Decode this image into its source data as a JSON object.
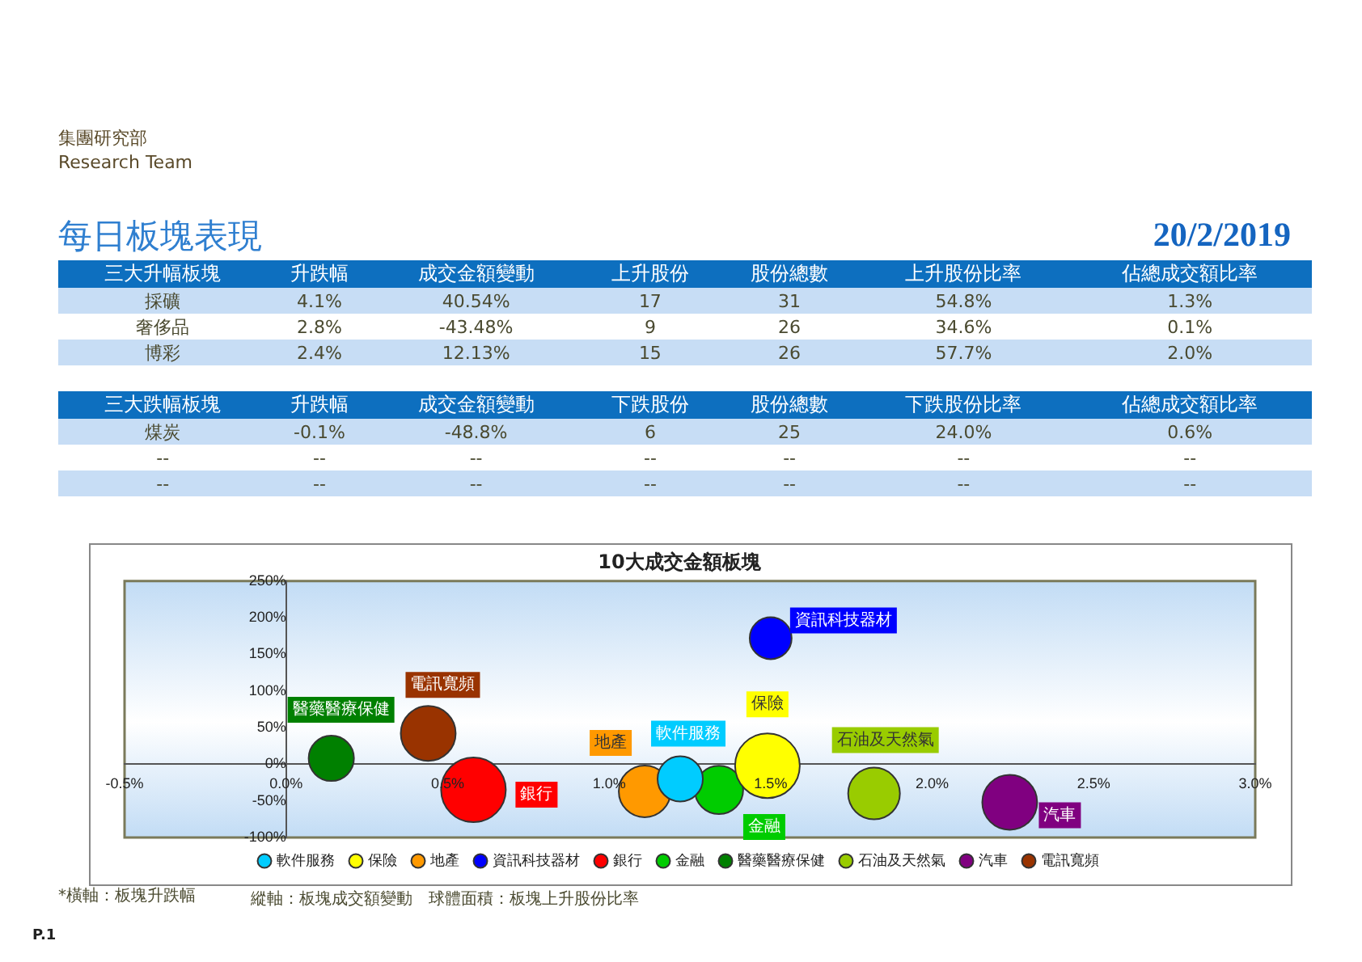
{
  "chart_data": [
    {
      "type": "other",
      "annotations": [
        "集團研究部",
        "Research Team"
      ]
    },
    {
      "type": "other",
      "title": "每日板塊表現",
      "subtitle": "20/2/2019",
      "annotations": [
        "三大升幅板塊",
        "升跌幅",
        "成交金額變動",
        "上升股份",
        "股份總數",
        "上升股份比率",
        "佔總成交額比率",
        "採礦",
        "4.1%",
        "40.54%",
        "17",
        "31",
        "54.8%",
        "1.3%",
        "奢侈品",
        "2.8%",
        "-43.48%",
        "9",
        "26",
        "34.6%",
        "0.1%",
        "博彩",
        "2.4%",
        "12.13%",
        "15",
        "26",
        "57.7%",
        "2.0%",
        "三大跌幅板塊",
        "升跌幅",
        "成交金額變動",
        "下跌股份",
        "股份總數",
        "下跌股份比率",
        "佔總成交額比率",
        "煤炭",
        "-0.1%",
        "-48.8%",
        "6",
        "25",
        "24.0%",
        "0.6%",
        "--",
        "--",
        "--",
        "--",
        "--",
        "--",
        "--",
        "--",
        "--",
        "--",
        "--",
        "--",
        "--",
        "--"
      ]
    },
    {
      "type": "bubble",
      "title": "10大成交金額板塊",
      "series": [
        {
          "name": "軟件服務",
          "color": "#00ccff",
          "x": [
            1.22
          ],
          "values": [
            -20
          ],
          "sizes": [
            0.49
          ]
        },
        {
          "name": "保險",
          "color": "#ffff00",
          "x": [
            1.49
          ],
          "values": [
            -2
          ],
          "sizes": [
            1
          ]
        },
        {
          "name": "地產",
          "color": "#ff9900",
          "x": [
            1.11
          ],
          "values": [
            -37
          ],
          "sizes": [
            0.64
          ]
        },
        {
          "name": "資訊科技器材",
          "color": "#0000ff",
          "x": [
            1.5
          ],
          "values": [
            172
          ],
          "sizes": [
            0.42
          ]
        },
        {
          "name": "銀行",
          "color": "#ff0000",
          "x": [
            0.58
          ],
          "values": [
            -35
          ],
          "sizes": [
            1
          ]
        },
        {
          "name": "金融",
          "color": "#00cc00",
          "x": [
            1.34
          ],
          "values": [
            -35
          ],
          "sizes": [
            0.56
          ]
        },
        {
          "name": "醫藥醫療保健",
          "color": "#008000",
          "x": [
            0.14
          ],
          "values": [
            8
          ],
          "sizes": [
            0.49
          ]
        },
        {
          "name": "石油及天然氣",
          "color": "#99cc00",
          "x": [
            1.82
          ],
          "values": [
            -40
          ],
          "sizes": [
            0.64
          ]
        },
        {
          "name": "汽車",
          "color": "#800080",
          "x": [
            2.24
          ],
          "values": [
            -52
          ],
          "sizes": [
            0.72
          ]
        },
        {
          "name": "電訊寬頻",
          "color": "#993300",
          "x": [
            0.44
          ],
          "values": [
            42
          ],
          "sizes": [
            0.72
          ]
        }
      ],
      "xlim": [
        -0.5,
        3
      ],
      "xticks": [
        {
          "value": -0.5,
          "label": "-0.5%"
        },
        {
          "value": 0,
          "label": "0.0%"
        },
        {
          "value": 0.5,
          "label": "0.5%"
        },
        {
          "value": 1,
          "label": "1.0%"
        },
        {
          "value": 1.5,
          "label": "1.5%"
        },
        {
          "value": 2,
          "label": "2.0%"
        },
        {
          "value": 2.5,
          "label": "2.5%"
        },
        {
          "value": 3,
          "label": "3.0%"
        }
      ],
      "ylim": [
        -100,
        250
      ],
      "yticks": [
        {
          "value": -100,
          "label": "-100%"
        },
        {
          "value": -50,
          "label": "-50%"
        },
        {
          "value": 0,
          "label": "0%"
        },
        {
          "value": 50,
          "label": "50%"
        },
        {
          "value": 100,
          "label": "100%"
        },
        {
          "value": 150,
          "label": "150%"
        },
        {
          "value": 200,
          "label": "200%"
        },
        {
          "value": 250,
          "label": "250%"
        }
      ],
      "grid": false,
      "legend": "bottom",
      "annotations": [
        "*橫軸：板塊升跌幅",
        "縱軸：板塊成交額變動",
        "球體面積：板塊上升股份比率",
        "P.1"
      ]
    }
  ]
}
